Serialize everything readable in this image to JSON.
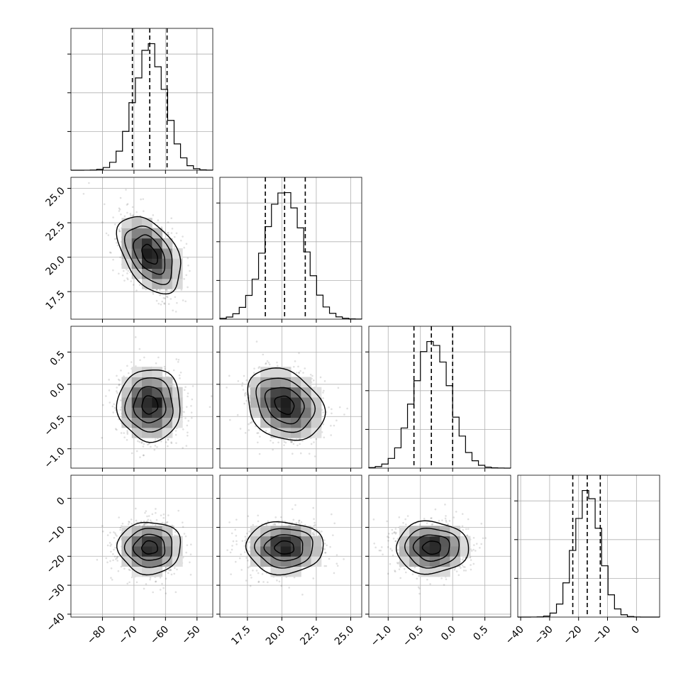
{
  "chart_data": {
    "type": "corner",
    "parameters": [
      {
        "index": 0,
        "range": [
          -90,
          -45
        ],
        "ticks": [
          -80,
          -70,
          -60,
          -50
        ],
        "tick_labels": [
          "−80",
          "−70",
          "−60",
          "−50"
        ],
        "mean": -65,
        "sigma": 5,
        "quantiles": [
          -70.5,
          -65,
          -59.5
        ]
      },
      {
        "index": 1,
        "range": [
          15.5,
          25.8
        ],
        "ticks": [
          17.5,
          20.0,
          22.5,
          25.0
        ],
        "tick_labels": [
          "17.5",
          "20.0",
          "22.5",
          "25.0"
        ],
        "mean": 20.2,
        "sigma": 1.4,
        "quantiles": [
          18.8,
          20.2,
          21.7
        ]
      },
      {
        "index": 2,
        "range": [
          -1.3,
          0.9
        ],
        "ticks": [
          -1.0,
          -0.5,
          0.0,
          0.5
        ],
        "tick_labels": [
          "−1.0",
          "−0.5",
          "0.0",
          "0.5"
        ],
        "mean": -0.32,
        "sigma": 0.28,
        "quantiles": [
          -0.6,
          -0.33,
          0.0
        ]
      },
      {
        "index": 3,
        "range": [
          -41,
          8
        ],
        "ticks": [
          -40,
          -30,
          -20,
          -10,
          0
        ],
        "tick_labels": [
          "−40",
          "−30",
          "−20",
          "−10",
          "0"
        ],
        "mean": -17,
        "sigma": 4.5,
        "quantiles": [
          -22,
          -17,
          -12.5
        ]
      }
    ],
    "correlations": [
      [
        0,
        1,
        -0.45
      ],
      [
        0,
        2,
        0.0
      ],
      [
        1,
        2,
        -0.25
      ],
      [
        0,
        3,
        0.0
      ],
      [
        1,
        3,
        0.0
      ],
      [
        2,
        3,
        0.0
      ]
    ],
    "contour_levels_sigma": [
      0.5,
      1.0,
      1.5,
      2.0
    ],
    "grid": true,
    "legend": "none",
    "title": "",
    "xlabel": "",
    "ylabel": ""
  }
}
